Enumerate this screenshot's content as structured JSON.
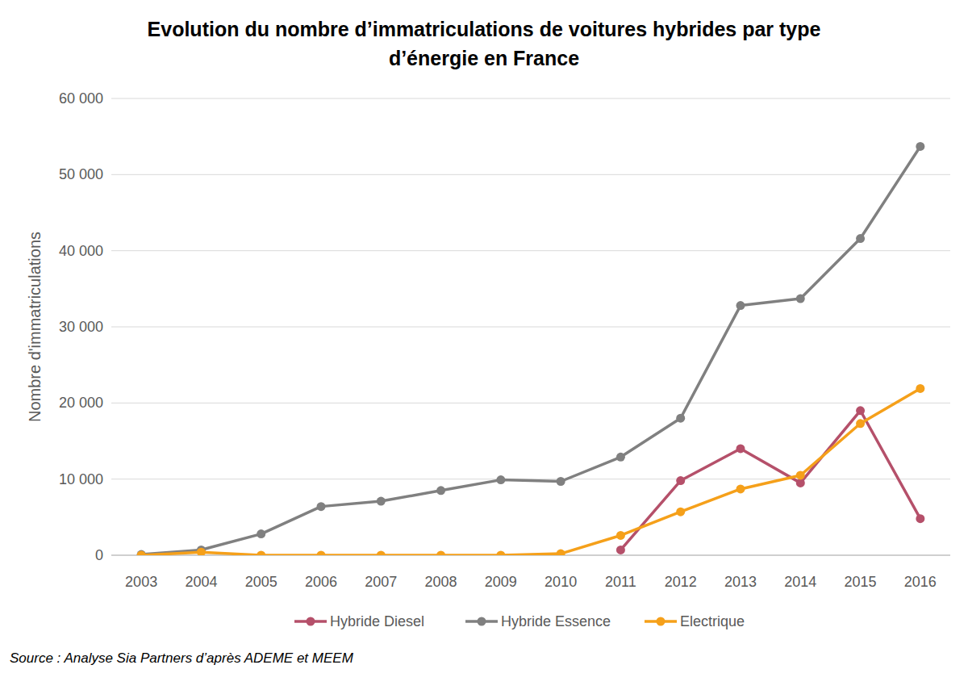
{
  "chart_data": {
    "type": "line",
    "title": "Evolution du nombre d’immatriculations de voitures hybrides par type d’énergie en France",
    "y_label": "Nombre d'immatriculations",
    "source": "Source : Analyse Sia Partners d’après ADEME et MEEM",
    "categories": [
      "2003",
      "2004",
      "2005",
      "2006",
      "2007",
      "2008",
      "2009",
      "2010",
      "2011",
      "2012",
      "2013",
      "2014",
      "2015",
      "2016"
    ],
    "series": [
      {
        "name": "Hybride Diesel",
        "color": "#b5506a",
        "marker": "circle",
        "values": [
          null,
          null,
          null,
          null,
          null,
          null,
          null,
          null,
          700,
          9800,
          14000,
          9500,
          19000,
          4800
        ]
      },
      {
        "name": "Hybride Essence",
        "color": "#808080",
        "marker": "circle",
        "values": [
          100,
          700,
          2800,
          6400,
          7100,
          8500,
          9900,
          9700,
          12900,
          18000,
          32800,
          33700,
          41600,
          53700
        ]
      },
      {
        "name": "Electrique",
        "color": "#f5a01a",
        "marker": "circle",
        "values": [
          0,
          400,
          0,
          0,
          0,
          0,
          0,
          200,
          2600,
          5700,
          8700,
          10500,
          17300,
          21900
        ]
      }
    ],
    "ylim": [
      0,
      60000
    ],
    "yticks": [
      0,
      {
        "value": 10000,
        "label": "10 000"
      },
      {
        "value": 20000,
        "label": "20 000"
      },
      {
        "value": 30000,
        "label": "30 000"
      },
      {
        "value": 40000,
        "label": "40 000"
      },
      {
        "value": 50000,
        "label": "50 000"
      },
      {
        "value": 60000,
        "label": "60 000"
      }
    ],
    "grid": true,
    "legend": "bottom"
  }
}
